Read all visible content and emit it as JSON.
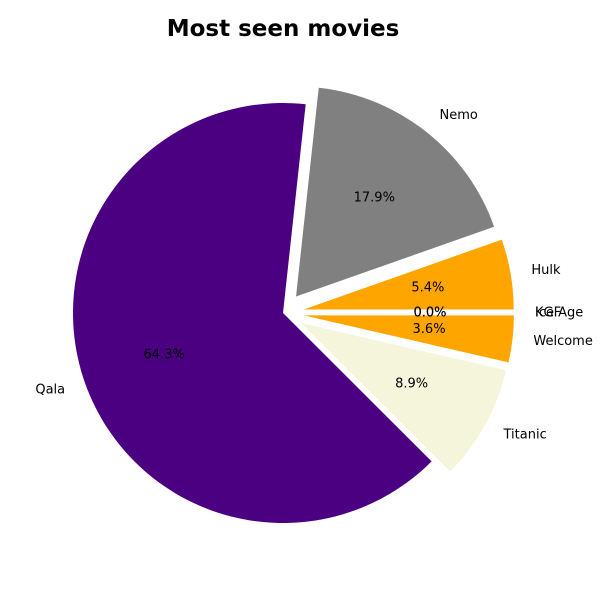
{
  "chart_data": {
    "type": "pie",
    "title": "Most seen movies",
    "slices": [
      {
        "label": "Hulk",
        "value": 5.4,
        "pct_label": "5.4%",
        "color": "#FFA500",
        "exploded": true
      },
      {
        "label": "Nemo",
        "value": 17.9,
        "pct_label": "17.9%",
        "color": "#808080",
        "exploded": true
      },
      {
        "label": "Qala",
        "value": 64.3,
        "pct_label": "64.3%",
        "color": "#4B0082",
        "exploded": false
      },
      {
        "label": "Titanic",
        "value": 8.9,
        "pct_label": "8.9%",
        "color": "#F5F5DC",
        "exploded": true
      },
      {
        "label": "Welcome",
        "value": 3.6,
        "pct_label": "3.6%",
        "color": "#FFA500",
        "exploded": true
      },
      {
        "label": "KGF",
        "value": 0.0,
        "pct_label": "0.0%",
        "color": "#FFA500",
        "exploded": true
      },
      {
        "label": "Ice Age",
        "value": 0.0,
        "pct_label": "0.0%",
        "color": "#FFA500",
        "exploded": true
      }
    ]
  }
}
